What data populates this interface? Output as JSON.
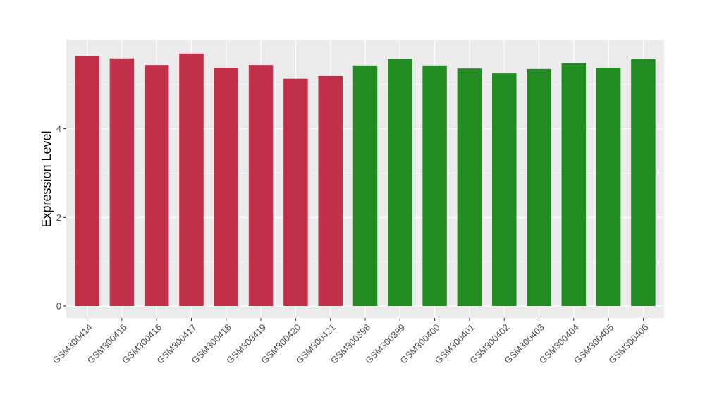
{
  "chart_data": {
    "type": "bar",
    "title": "",
    "xlabel": "",
    "ylabel": "Expression Level",
    "ylim": [
      -0.27,
      6.0
    ],
    "yticks": [
      0,
      2,
      4
    ],
    "grid": true,
    "legend": "none",
    "categories": [
      "GSM300414",
      "GSM300415",
      "GSM300416",
      "GSM300417",
      "GSM300418",
      "GSM300419",
      "GSM300420",
      "GSM300421",
      "GSM300398",
      "GSM300399",
      "GSM300400",
      "GSM300401",
      "GSM300402",
      "GSM300403",
      "GSM300404",
      "GSM300405",
      "GSM300406"
    ],
    "values": [
      5.64,
      5.59,
      5.44,
      5.7,
      5.38,
      5.44,
      5.13,
      5.19,
      5.43,
      5.58,
      5.43,
      5.36,
      5.25,
      5.35,
      5.48,
      5.38,
      5.57
    ],
    "bar_colors": [
      "#c1314a",
      "#c1314a",
      "#c1314a",
      "#c1314a",
      "#c1314a",
      "#c1314a",
      "#c1314a",
      "#c1314a",
      "#228b22",
      "#228b22",
      "#228b22",
      "#228b22",
      "#228b22",
      "#228b22",
      "#228b22",
      "#228b22",
      "#228b22"
    ],
    "panel_color": "#ebebeb",
    "grid_color": "#ffffff"
  }
}
